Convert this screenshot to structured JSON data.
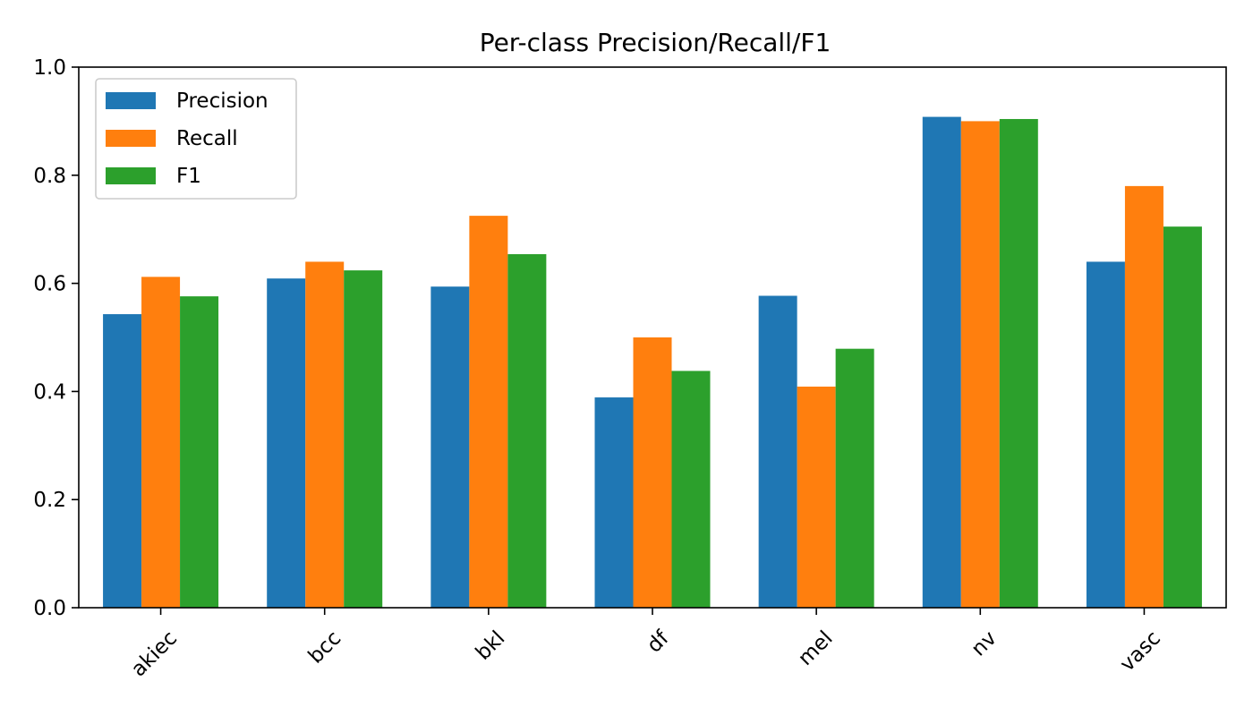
{
  "chart_data": {
    "type": "bar",
    "title": "Per-class Precision/Recall/F1",
    "xlabel": "",
    "ylabel": "",
    "categories": [
      "akiec",
      "bcc",
      "bkl",
      "df",
      "mel",
      "nv",
      "vasc"
    ],
    "series": [
      {
        "name": "Precision",
        "color": "#1f77b4",
        "values": [
          0.543,
          0.609,
          0.594,
          0.389,
          0.577,
          0.908,
          0.64
        ]
      },
      {
        "name": "Recall",
        "color": "#ff7f0e",
        "values": [
          0.612,
          0.64,
          0.725,
          0.5,
          0.409,
          0.9,
          0.78
        ]
      },
      {
        "name": "F1",
        "color": "#2ca02c",
        "values": [
          0.576,
          0.624,
          0.654,
          0.438,
          0.479,
          0.904,
          0.705
        ]
      }
    ],
    "ylim": [
      0,
      1.0
    ],
    "yticks": [
      "0.0",
      "0.2",
      "0.4",
      "0.6",
      "0.8",
      "1.0"
    ],
    "grid": false,
    "legend_position": "top-left"
  }
}
